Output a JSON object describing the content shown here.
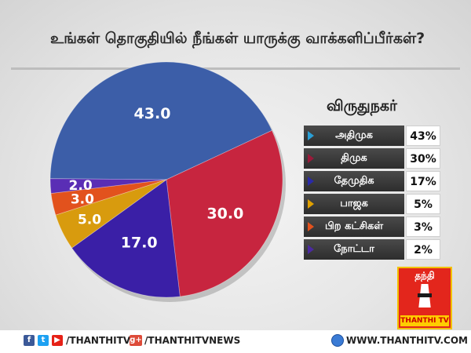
{
  "title": "உங்கள் தொகுதியில் நீங்கள் யாருக்கு வாக்களிப்பீர்கள்?",
  "region": "விருதுநகர்",
  "chart_data": {
    "type": "pie",
    "title": "உங்கள் தொகுதியில் நீங்கள் யாருக்கு வாக்களிப்பீர்கள்?",
    "slices": [
      {
        "label": "அதிமுக",
        "value": 43.0,
        "value_label": "43.0",
        "legend_pct": "43%",
        "color": "#3c5ea8"
      },
      {
        "label": "திமுக",
        "value": 30.0,
        "value_label": "30.0",
        "legend_pct": "30%",
        "color": "#c7253f"
      },
      {
        "label": "தேமுதிக",
        "value": 17.0,
        "value_label": "17.0",
        "legend_pct": "17%",
        "color": "#3a1fa6"
      },
      {
        "label": "பாஜக",
        "value": 5.0,
        "value_label": "5.0",
        "legend_pct": "5%",
        "color": "#d89b0e"
      },
      {
        "label": "பிற கட்சிகள்",
        "value": 3.0,
        "value_label": "3.0",
        "legend_pct": "3%",
        "color": "#e2521d"
      },
      {
        "label": "நோட்டா",
        "value": 2.0,
        "value_label": "2.0",
        "legend_pct": "2%",
        "color": "#5a2eb5"
      }
    ],
    "legend_position": "right"
  },
  "legend_marker_colors": [
    "#2a9fd6",
    "#9a1a3a",
    "#2a2aa8",
    "#e0a000",
    "#e2521d",
    "#4b2aa0"
  ],
  "logo": {
    "top_text": "தந்தி",
    "bottom_text": "THANTHI TV",
    "colors": {
      "background": "#e3261c",
      "border": "#f2c200",
      "band": "#ffcc00"
    }
  },
  "footer": {
    "social_icons": [
      {
        "name": "facebook-icon",
        "glyph": "f",
        "color": "#3b5998"
      },
      {
        "name": "twitter-icon",
        "glyph": "t",
        "color": "#1da1f2"
      },
      {
        "name": "youtube-icon",
        "glyph": "▶",
        "color": "#e62117"
      }
    ],
    "handle": "/THANTHITV",
    "gplus": {
      "name": "google-plus-icon",
      "glyph": "g+",
      "color": "#dd4b39"
    },
    "gplus_handle": "/THANTHITVNEWS",
    "globe_icon": "globe-icon",
    "website": "WWW.THANTHITV.COM"
  }
}
